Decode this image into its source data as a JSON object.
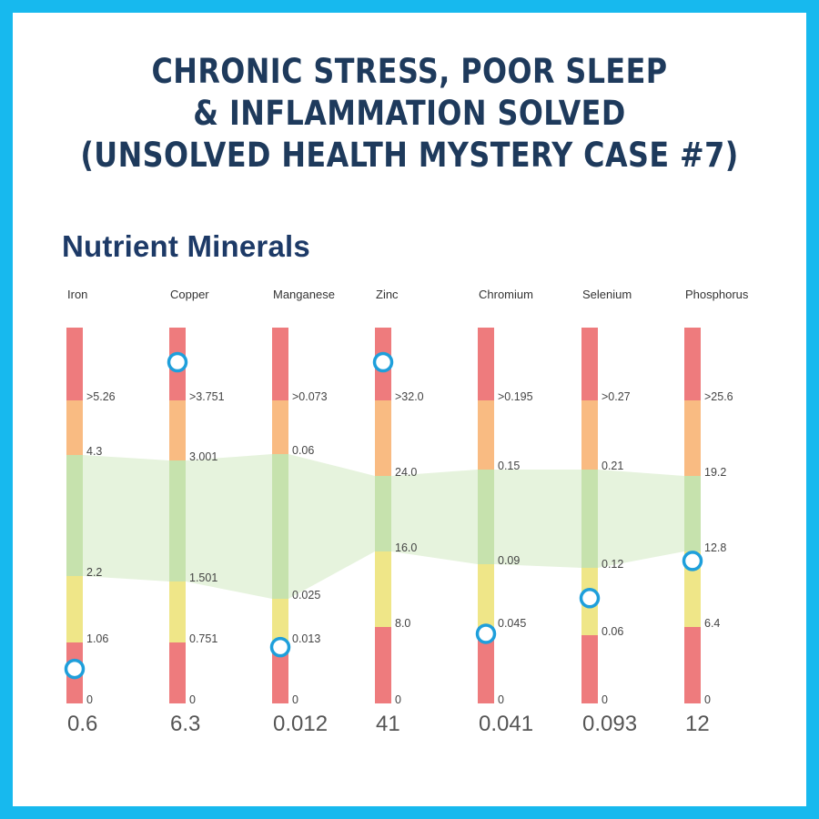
{
  "headline": {
    "line1": "CHRONIC STRESS, POOR SLEEP",
    "line2": "& INFLAMMATION SOLVED",
    "line3": "(UNSOLVED HEALTH MYSTERY CASE #7)"
  },
  "chart_data": {
    "type": "range-gauge",
    "title": "Nutrient Minerals",
    "colors": {
      "frame": "#17b9ee",
      "high_red": "#ee7b7d",
      "high_orange": "#f9bb82",
      "optimal_green": "#c6e2ad",
      "low_yellow": "#efe688",
      "low_red": "#ee7b7d",
      "optimal_band": "#e6f3dd",
      "marker": "#1e9fdb"
    },
    "minerals": [
      {
        "name": "Iron",
        "value": 0.6,
        "value_label": "0.6",
        "thresholds": [
          ">5.26",
          "4.3",
          "2.2",
          "1.06",
          "0"
        ],
        "threshold_values": [
          5.26,
          4.3,
          2.2,
          1.06,
          0
        ]
      },
      {
        "name": "Copper",
        "value": 6.3,
        "value_label": "6.3",
        "thresholds": [
          ">3.751",
          "3.001",
          "1.501",
          "0.751",
          "0"
        ],
        "threshold_values": [
          3.751,
          3.001,
          1.501,
          0.751,
          0
        ]
      },
      {
        "name": "Manganese",
        "value": 0.012,
        "value_label": "0.012",
        "thresholds": [
          ">0.073",
          "0.06",
          "0.025",
          "0.013",
          "0"
        ],
        "threshold_values": [
          0.073,
          0.06,
          0.025,
          0.013,
          0
        ]
      },
      {
        "name": "Zinc",
        "value": 41,
        "value_label": "41",
        "thresholds": [
          ">32.0",
          "24.0",
          "16.0",
          "8.0",
          "0"
        ],
        "threshold_values": [
          32.0,
          24.0,
          16.0,
          8.0,
          0
        ]
      },
      {
        "name": "Chromium",
        "value": 0.041,
        "value_label": "0.041",
        "thresholds": [
          ">0.195",
          "0.15",
          "0.09",
          "0.045",
          "0"
        ],
        "threshold_values": [
          0.195,
          0.15,
          0.09,
          0.045,
          0
        ]
      },
      {
        "name": "Selenium",
        "value": 0.093,
        "value_label": "0.093",
        "thresholds": [
          ">0.27",
          "0.21",
          "0.12",
          "0.06",
          "0"
        ],
        "threshold_values": [
          0.27,
          0.21,
          0.12,
          0.06,
          0
        ]
      },
      {
        "name": "Phosphorus",
        "value": 12,
        "value_label": "12",
        "thresholds": [
          ">25.6",
          "19.2",
          "12.8",
          "6.4",
          "0"
        ],
        "threshold_values": [
          25.6,
          19.2,
          12.8,
          6.4,
          0
        ]
      }
    ]
  }
}
